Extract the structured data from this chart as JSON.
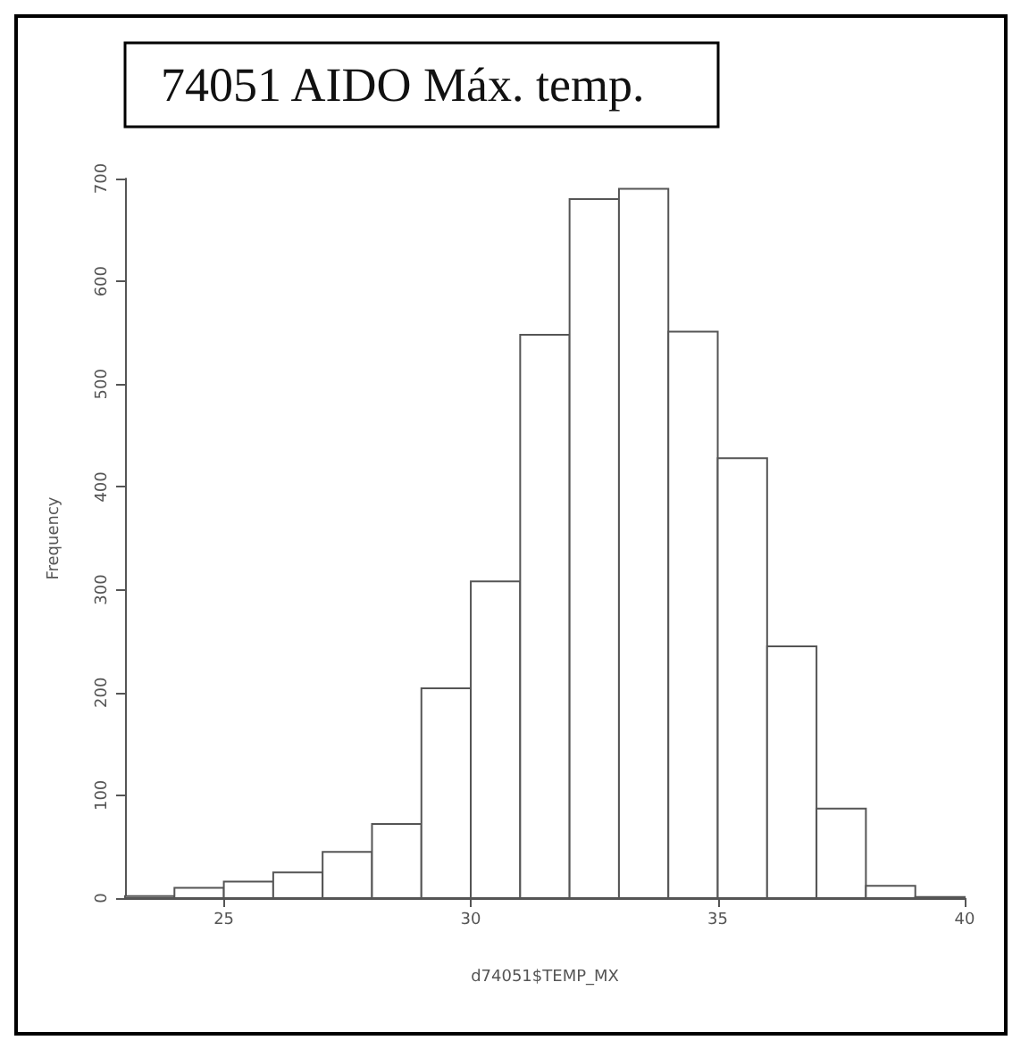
{
  "chart_data": {
    "type": "histogram",
    "title": "74051 AIDO Máx. temp.",
    "xlabel": "d74051$TEMP_MX",
    "ylabel": "Frequency",
    "bins": [
      23,
      24,
      25,
      26,
      27,
      28,
      29,
      30,
      31,
      32,
      33,
      34,
      35,
      36,
      37,
      38,
      39,
      40
    ],
    "values": [
      2,
      10,
      16,
      25,
      45,
      72,
      204,
      308,
      548,
      680,
      690,
      551,
      428,
      245,
      87,
      12,
      1
    ],
    "color": "#ffffff",
    "xlim": [
      23,
      40
    ],
    "xticks": [
      25,
      30,
      35,
      40
    ],
    "ylim": [
      0,
      700
    ],
    "yticks": [
      0,
      100,
      200,
      300,
      400,
      500,
      600,
      700
    ],
    "grid": false
  }
}
